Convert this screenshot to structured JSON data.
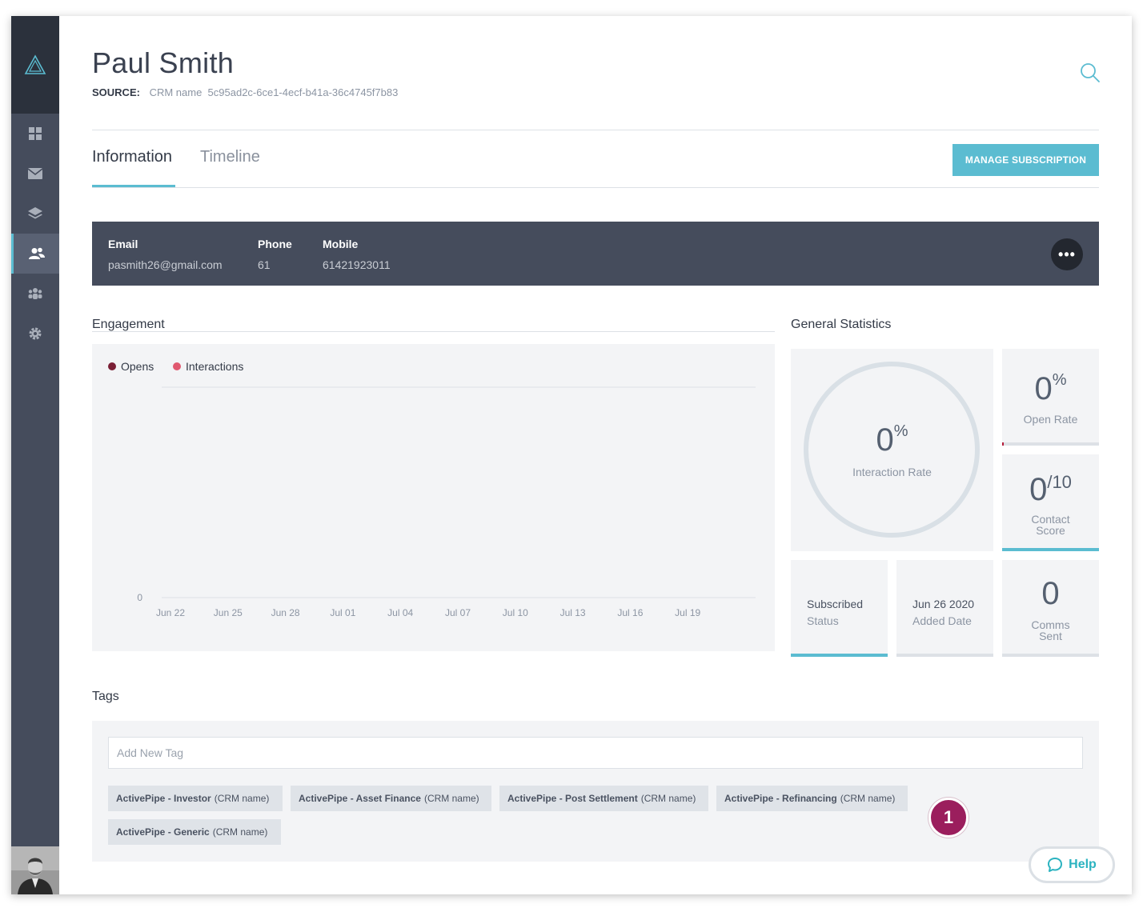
{
  "contact": {
    "name": "Paul Smith",
    "source_label": "SOURCE:",
    "source_value": "CRM name  5c95ad2c-6ce1-4ecf-b41a-36c4745f7b83"
  },
  "tabs": [
    {
      "label": "Information",
      "active": true
    },
    {
      "label": "Timeline",
      "active": false
    }
  ],
  "manage_button": "MANAGE SUBSCRIPTION",
  "contact_fields": [
    {
      "label": "Email",
      "value": "pasmith26@gmail.com"
    },
    {
      "label": "Phone",
      "value": "61"
    },
    {
      "label": "Mobile",
      "value": "61421923011"
    }
  ],
  "more_button": "•••",
  "engagement": {
    "title": "Engagement",
    "legend": [
      {
        "name": "Opens",
        "color": "#7a1f35"
      },
      {
        "name": "Interactions",
        "color": "#e0586f"
      }
    ]
  },
  "chart_data": {
    "type": "line",
    "title": "",
    "xlabel": "",
    "ylabel": "",
    "x": [
      "Jun 22",
      "Jun 25",
      "Jun 28",
      "Jul 01",
      "Jul 04",
      "Jul 07",
      "Jul 10",
      "Jul 13",
      "Jul 16",
      "Jul 19"
    ],
    "y_ticks": [
      "0"
    ],
    "series": [
      {
        "name": "Opens",
        "values": [
          0,
          0,
          0,
          0,
          0,
          0,
          0,
          0,
          0,
          0
        ]
      },
      {
        "name": "Interactions",
        "values": [
          0,
          0,
          0,
          0,
          0,
          0,
          0,
          0,
          0,
          0
        ]
      }
    ],
    "legend": "top-left",
    "grid": false
  },
  "general_stats": {
    "title": "General Statistics",
    "interaction_rate": {
      "value": "0",
      "unit": "%",
      "label": "Interaction Rate",
      "fraction": 0
    },
    "open_rate": {
      "value": "0",
      "unit": "%",
      "label": "Open Rate",
      "fraction": 0
    },
    "contact_score": {
      "value": "0",
      "unit": "/10",
      "label_line1": "Contact",
      "label_line2": "Score",
      "fraction": 0
    },
    "subscribed": {
      "line1": "Subscribed",
      "line2": "Status",
      "fraction": 1
    },
    "added_date": {
      "line1": "Jun 26 2020",
      "line2": "Added Date",
      "fraction": 0
    },
    "comms_sent": {
      "value": "0",
      "line1": "Comms",
      "line2": "Sent",
      "fraction": 0
    }
  },
  "tags": {
    "title": "Tags",
    "input_placeholder": "Add New Tag",
    "items": [
      {
        "name": "ActivePipe - Investor",
        "source": "(CRM name)"
      },
      {
        "name": "ActivePipe - Asset Finance",
        "source": "(CRM name)"
      },
      {
        "name": "ActivePipe - Post Settlement",
        "source": "(CRM name)"
      },
      {
        "name": "ActivePipe - Refinancing",
        "source": "(CRM name)"
      },
      {
        "name": "ActivePipe - Generic",
        "source": "(CRM name)"
      }
    ]
  },
  "step_badge": "1",
  "help_button": "Help",
  "colors": {
    "accent": "#5bbcd1",
    "sidebar": "#454c5c",
    "badge": "#9b1e5d"
  }
}
